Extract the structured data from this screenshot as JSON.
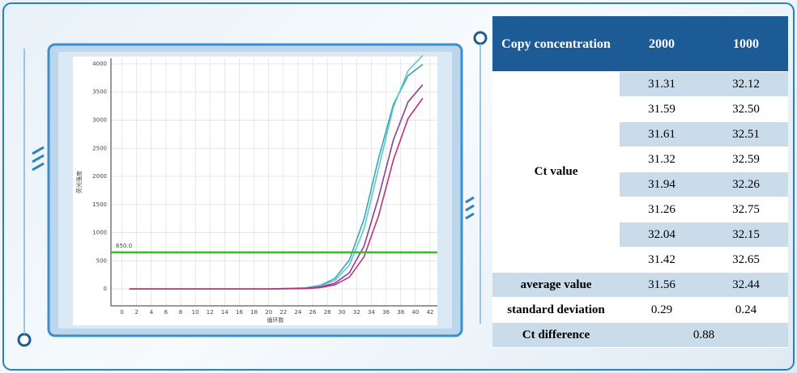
{
  "chart_data": {
    "type": "line",
    "x_label": "循环数",
    "y_label": "荧光强度",
    "x": [
      1,
      5,
      10,
      15,
      20,
      25,
      27,
      29,
      31,
      33,
      35,
      37,
      39,
      41
    ],
    "series": [
      {
        "color": "#3aa7a8",
        "values": [
          0,
          0,
          0,
          0,
          0,
          21,
          62,
          184,
          514,
          1242,
          2330,
          3280,
          3790,
          3990
        ]
      },
      {
        "color": "#5fc6d8",
        "values": [
          0,
          0,
          0,
          0,
          0,
          15,
          50,
          148,
          421,
          1067,
          2150,
          3230,
          3880,
          4150
        ]
      },
      {
        "color": "#8a3f9c",
        "values": [
          0,
          0,
          0,
          0,
          0,
          10,
          34,
          100,
          288,
          760,
          1637,
          2648,
          3324,
          3630
        ]
      },
      {
        "color": "#c0307a",
        "values": [
          0,
          0,
          0,
          0,
          0,
          7,
          24,
          72,
          210,
          571,
          1309,
          2293,
          3028,
          3390
        ]
      }
    ],
    "xlim": [
      -1.5,
      43
    ],
    "xticks": [
      0,
      2,
      4,
      6,
      8,
      10,
      12,
      14,
      16,
      18,
      20,
      22,
      24,
      26,
      28,
      30,
      32,
      34,
      36,
      38,
      40,
      42
    ],
    "ylim": [
      -300,
      4100
    ],
    "yticks": [
      0,
      500,
      1000,
      1500,
      2000,
      2500,
      3000,
      3500,
      4000
    ],
    "grid": true,
    "threshold": {
      "value": 650,
      "label": "650.0"
    },
    "threshold_color": "#3dbb2f"
  },
  "table": {
    "header": [
      "Copy concentration",
      "2000",
      "1000"
    ],
    "ct_label": "Ct value",
    "ct_rows": [
      [
        "31.31",
        "32.12"
      ],
      [
        "31.59",
        "32.50"
      ],
      [
        "31.61",
        "32.51"
      ],
      [
        "31.32",
        "32.59"
      ],
      [
        "31.94",
        "32.26"
      ],
      [
        "31.26",
        "32.75"
      ],
      [
        "32.04",
        "32.15"
      ],
      [
        "31.42",
        "32.65"
      ]
    ],
    "average": {
      "label": "average value",
      "values": [
        "31.56",
        "32.44"
      ]
    },
    "std": {
      "label": "standard deviation",
      "values": [
        "0.29",
        "0.24"
      ]
    },
    "diff": {
      "label": "Ct difference",
      "value": "0.88"
    }
  }
}
